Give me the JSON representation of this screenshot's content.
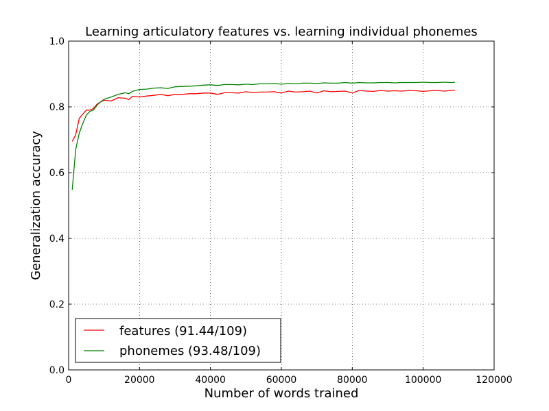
{
  "chart_data": {
    "type": "line",
    "title": "Learning articulatory features vs. learning individual phonemes",
    "xlabel": "Number of words trained",
    "ylabel": "Generalization accuracy",
    "xlim": [
      0,
      120000
    ],
    "ylim": [
      0.0,
      1.0
    ],
    "xticks": [
      0,
      20000,
      40000,
      60000,
      80000,
      100000,
      120000
    ],
    "xtick_labels": [
      "0",
      "20000",
      "40000",
      "60000",
      "80000",
      "100000",
      "120000"
    ],
    "yticks": [
      0.0,
      0.2,
      0.4,
      0.6,
      0.8,
      1.0
    ],
    "ytick_labels": [
      "0.0",
      "0.2",
      "0.4",
      "0.6",
      "0.8",
      "1.0"
    ],
    "grid": true,
    "legend_position": "bottom-left",
    "series": [
      {
        "name": "features (91.44/109)",
        "color": "#ff0000",
        "x": [
          1000,
          2000,
          3000,
          4000,
          5000,
          6000,
          7000,
          8000,
          9000,
          10000,
          12000,
          14000,
          16000,
          17000,
          18000,
          20000,
          22000,
          24000,
          26000,
          28000,
          30000,
          32000,
          34000,
          36000,
          38000,
          40000,
          42000,
          44000,
          46000,
          48000,
          50000,
          52000,
          54000,
          56000,
          58000,
          60000,
          62000,
          64000,
          66000,
          68000,
          70000,
          72000,
          74000,
          76000,
          78000,
          80000,
          82000,
          84000,
          86000,
          88000,
          90000,
          92000,
          94000,
          96000,
          98000,
          100000,
          102000,
          104000,
          106000,
          108000,
          109000
        ],
        "y": [
          0.695,
          0.715,
          0.765,
          0.778,
          0.79,
          0.79,
          0.795,
          0.808,
          0.815,
          0.82,
          0.818,
          0.828,
          0.826,
          0.822,
          0.832,
          0.83,
          0.833,
          0.835,
          0.838,
          0.834,
          0.838,
          0.838,
          0.84,
          0.84,
          0.842,
          0.842,
          0.838,
          0.843,
          0.843,
          0.842,
          0.846,
          0.843,
          0.845,
          0.845,
          0.846,
          0.842,
          0.848,
          0.845,
          0.846,
          0.848,
          0.842,
          0.849,
          0.846,
          0.847,
          0.848,
          0.842,
          0.85,
          0.848,
          0.847,
          0.85,
          0.848,
          0.849,
          0.848,
          0.85,
          0.849,
          0.847,
          0.849,
          0.85,
          0.848,
          0.85,
          0.851
        ]
      },
      {
        "name": "phonemes (93.48/109)",
        "color": "#008000",
        "x": [
          1000,
          2000,
          3000,
          4000,
          5000,
          6000,
          7000,
          8000,
          9000,
          10000,
          12000,
          14000,
          16000,
          17000,
          18000,
          20000,
          22000,
          24000,
          26000,
          28000,
          30000,
          32000,
          34000,
          36000,
          38000,
          40000,
          42000,
          44000,
          46000,
          48000,
          50000,
          52000,
          54000,
          56000,
          58000,
          60000,
          62000,
          64000,
          66000,
          68000,
          70000,
          72000,
          74000,
          76000,
          78000,
          80000,
          82000,
          84000,
          86000,
          88000,
          90000,
          92000,
          94000,
          96000,
          98000,
          100000,
          102000,
          104000,
          106000,
          108000,
          109000
        ],
        "y": [
          0.548,
          0.67,
          0.72,
          0.75,
          0.775,
          0.786,
          0.79,
          0.805,
          0.815,
          0.823,
          0.83,
          0.838,
          0.843,
          0.84,
          0.847,
          0.853,
          0.854,
          0.857,
          0.858,
          0.856,
          0.861,
          0.862,
          0.863,
          0.864,
          0.866,
          0.867,
          0.865,
          0.868,
          0.868,
          0.867,
          0.869,
          0.868,
          0.87,
          0.87,
          0.871,
          0.869,
          0.871,
          0.87,
          0.872,
          0.872,
          0.871,
          0.873,
          0.872,
          0.872,
          0.874,
          0.872,
          0.874,
          0.873,
          0.873,
          0.874,
          0.874,
          0.873,
          0.874,
          0.874,
          0.874,
          0.875,
          0.874,
          0.874,
          0.875,
          0.874,
          0.875
        ]
      }
    ]
  }
}
